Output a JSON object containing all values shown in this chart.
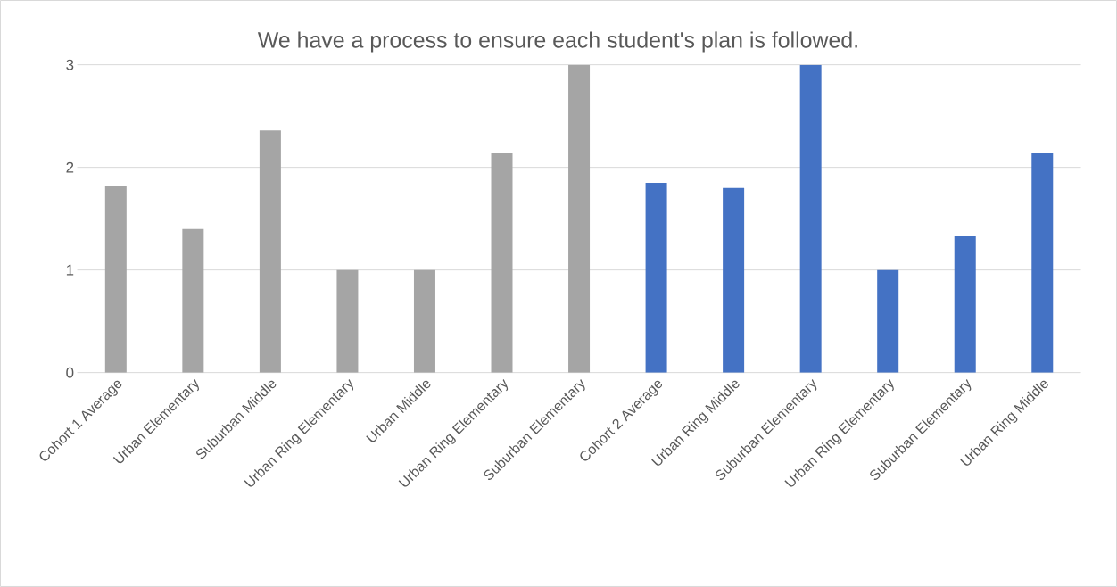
{
  "chart_data": {
    "type": "bar",
    "title": "We have a process to ensure each student's plan is followed.",
    "categories": [
      "Cohort 1 Average",
      "Urban Elementary",
      "Suburban Middle",
      "Urban Ring Elementary",
      "Urban Middle",
      "Urban Ring Elementary",
      "Suburban Elementary",
      "Cohort 2 Average",
      "Urban Ring Middle",
      "Suburban Elementary",
      "Urban Ring Elementary",
      "Suburban Elementary",
      "Urban Ring Middle"
    ],
    "values": [
      1.82,
      1.4,
      2.36,
      1,
      1,
      2.14,
      3,
      1.85,
      1.8,
      3,
      1,
      1.33,
      2.14
    ],
    "colors": [
      "#a5a5a5",
      "#a5a5a5",
      "#a5a5a5",
      "#a5a5a5",
      "#a5a5a5",
      "#a5a5a5",
      "#a5a5a5",
      "#4472c4",
      "#4472c4",
      "#4472c4",
      "#4472c4",
      "#4472c4",
      "#4472c4"
    ],
    "ylim": [
      0,
      3
    ],
    "yticks": [
      0,
      1,
      2,
      3
    ],
    "grid": "y"
  }
}
